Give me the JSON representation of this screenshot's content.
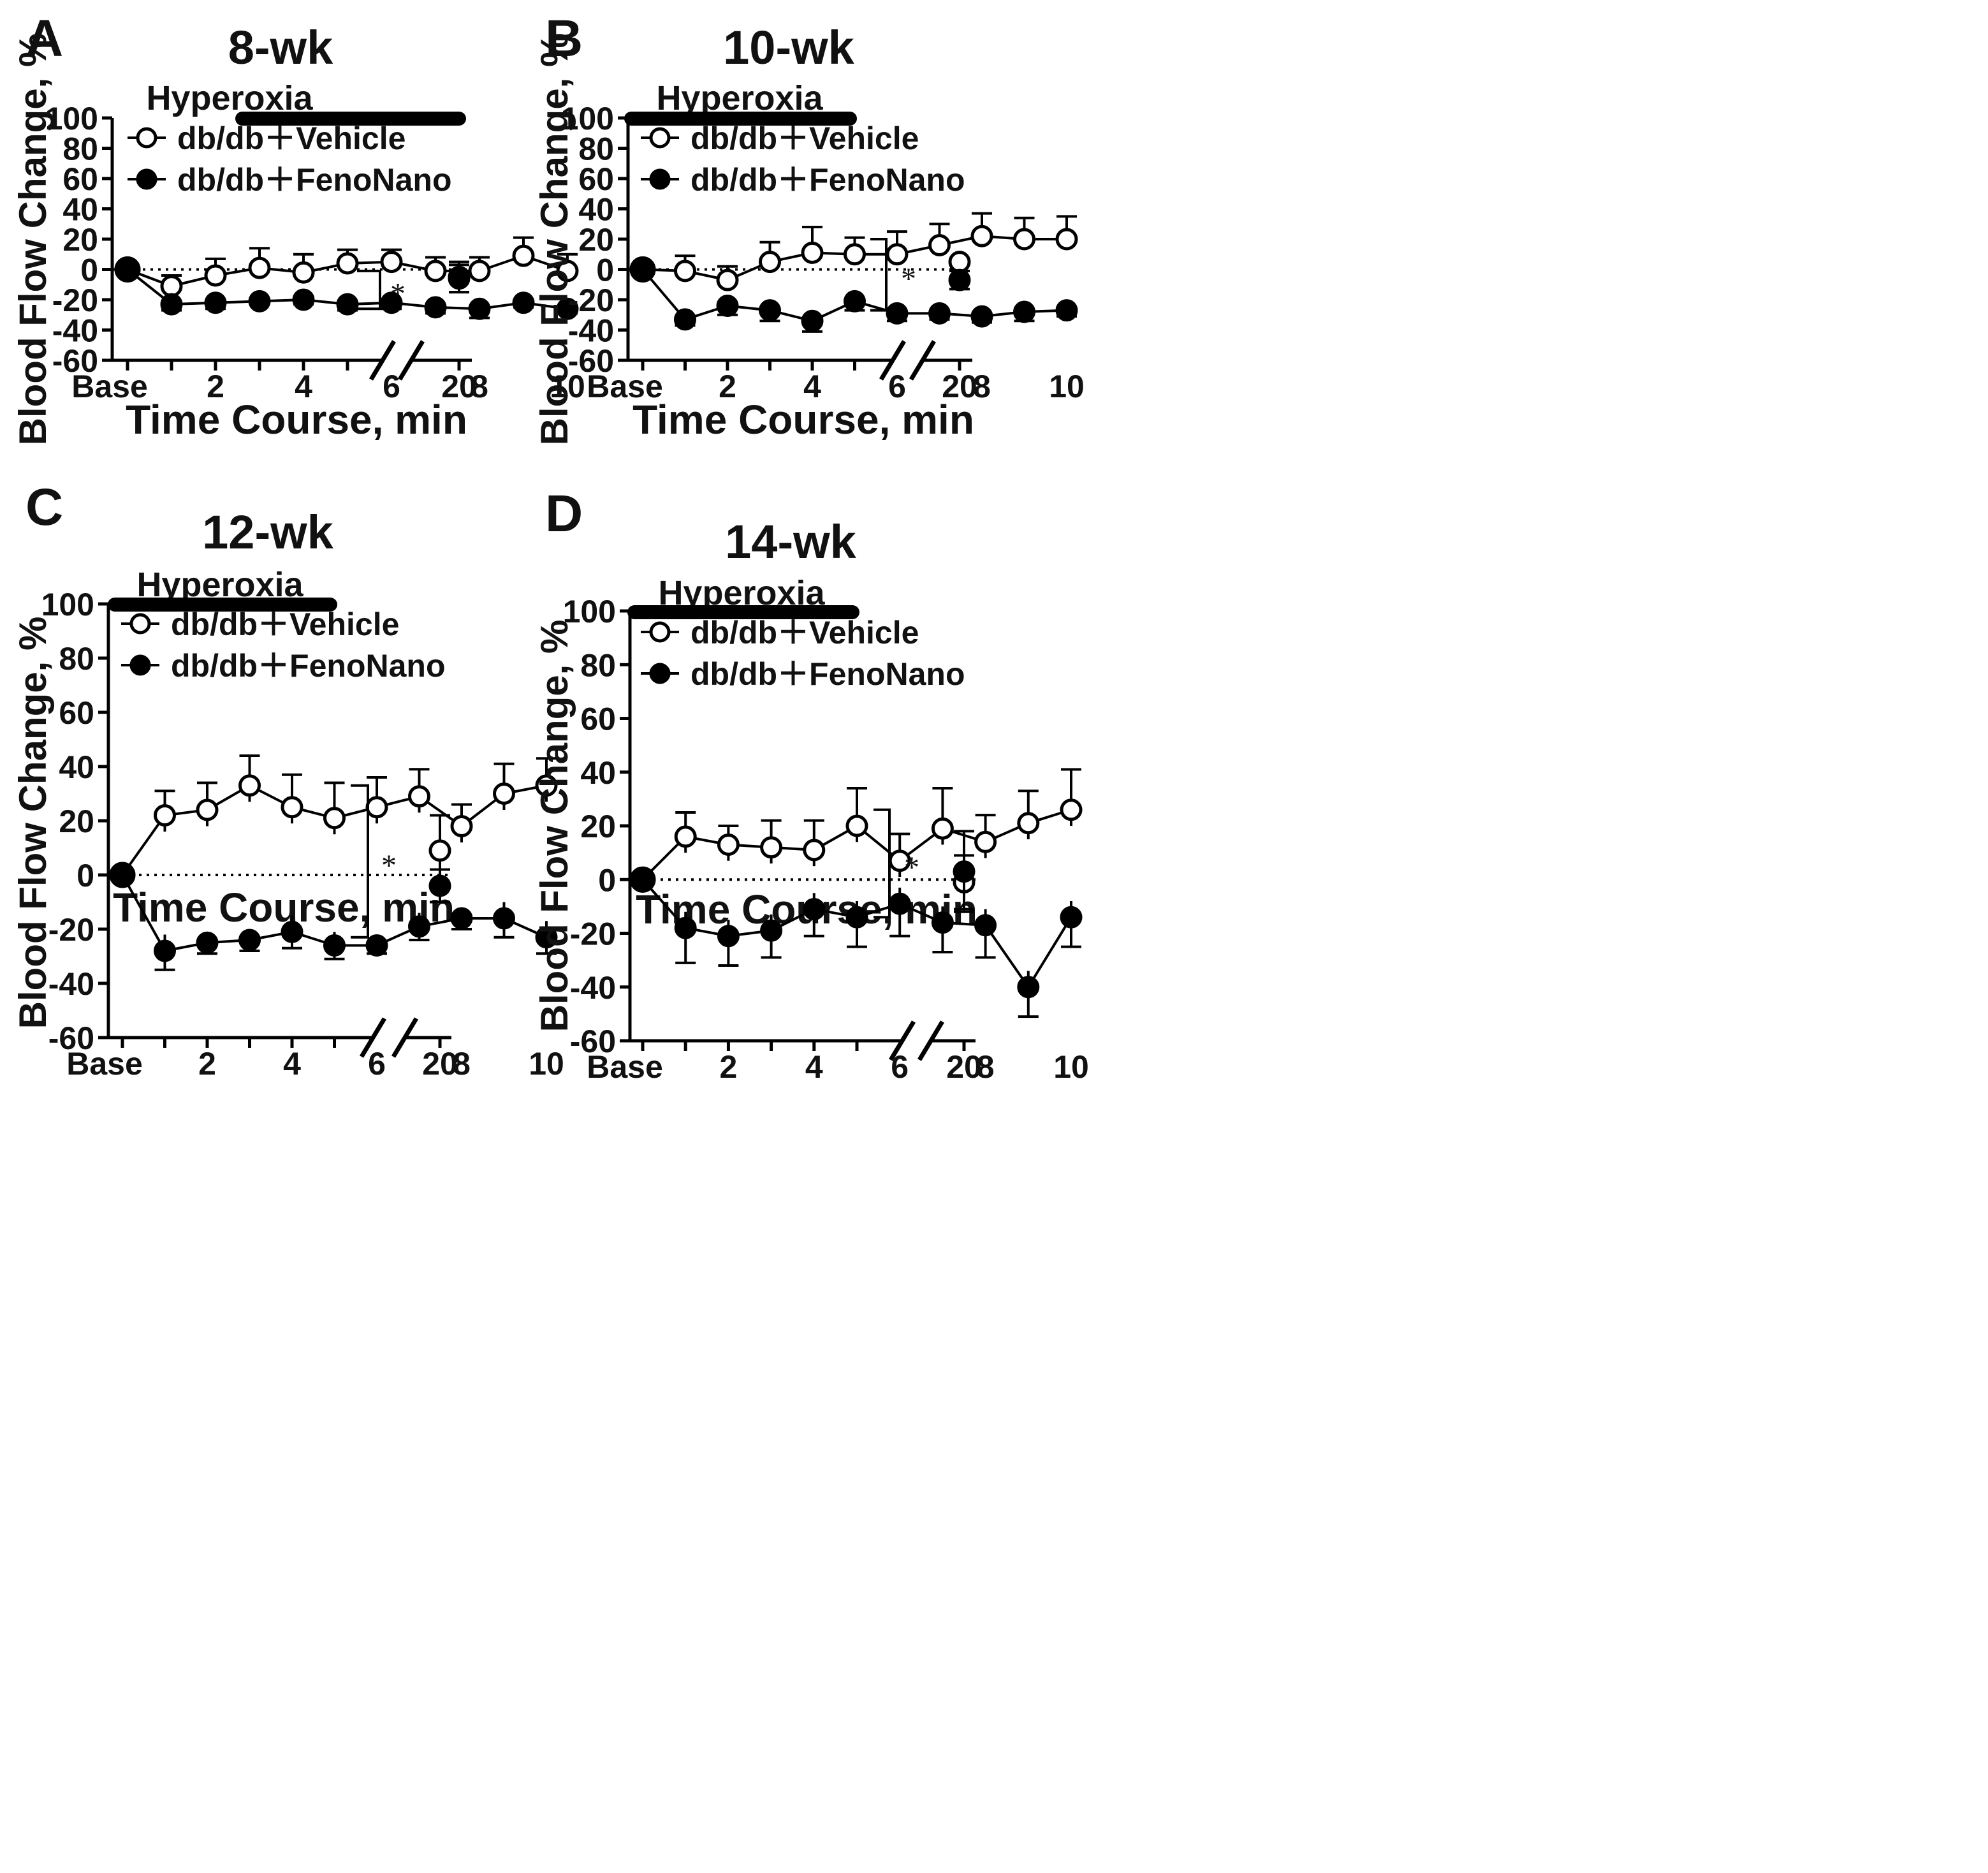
{
  "figure": {
    "shared": {
      "hyperoxia_label": "Hyperoxia",
      "legend": [
        "db/db＋Vehicle",
        "db/db＋FenoNano"
      ],
      "ylabel": "Blood Flow Change, %",
      "xlabel": "Time Course, min",
      "significance": "*"
    }
  },
  "chart_data": [
    {
      "panel": "A",
      "title": "8-wk",
      "type": "line",
      "x": [
        "Base",
        1,
        2,
        3,
        4,
        5,
        6,
        7,
        8,
        9,
        10
      ],
      "x_tick_labels": [
        "Base",
        "2",
        "4",
        "6",
        "8",
        "10",
        "20"
      ],
      "ylim": [
        -60,
        100
      ],
      "y_ticks": [
        100,
        80,
        60,
        40,
        20,
        0,
        -20,
        -40,
        -60
      ],
      "xlabel": "Time Course, min",
      "ylabel": "Blood Flow Change, %",
      "hyperoxia": "Hyperoxia",
      "series": [
        {
          "name": "db/db＋Vehicle",
          "marker": "open",
          "values": [
            0,
            -11,
            -4,
            1,
            -2,
            4,
            5,
            -1,
            -1,
            9,
            -1
          ],
          "errors": [
            0,
            7,
            11,
            13,
            12,
            9,
            8,
            9,
            9,
            12,
            11
          ],
          "x20": -5,
          "err20": 10
        },
        {
          "name": "db/db＋FenoNano",
          "marker": "filled",
          "values": [
            0,
            -23,
            -22,
            -21,
            -20,
            -23,
            -22,
            -25,
            -26,
            -22,
            -26
          ],
          "errors": [
            0,
            4,
            4,
            2,
            3,
            4,
            4,
            4,
            6,
            3,
            3
          ],
          "x20": -6,
          "err20": 9
        }
      ],
      "significance": "*"
    },
    {
      "panel": "B",
      "title": "10-wk",
      "type": "line",
      "x": [
        "Base",
        1,
        2,
        3,
        4,
        5,
        6,
        7,
        8,
        9,
        10
      ],
      "x_tick_labels": [
        "Base",
        "2",
        "4",
        "6",
        "8",
        "10",
        "20"
      ],
      "ylim": [
        -60,
        100
      ],
      "y_ticks": [
        100,
        80,
        60,
        40,
        20,
        0,
        -20,
        -40,
        -60
      ],
      "xlabel": "Time Course, min",
      "ylabel": "Blood Flow Change, %",
      "hyperoxia": "Hyperoxia",
      "series": [
        {
          "name": "db/db＋Vehicle",
          "marker": "open",
          "values": [
            0,
            -1,
            -7,
            5,
            11,
            10,
            10,
            16,
            22,
            20,
            20
          ],
          "errors": [
            0,
            10,
            9,
            13,
            17,
            11,
            15,
            14,
            15,
            14,
            15
          ],
          "x20": 5,
          "err20": 0
        },
        {
          "name": "db/db＋FenoNano",
          "marker": "filled",
          "values": [
            0,
            -33,
            -24,
            -27,
            -34,
            -21,
            -29,
            -29,
            -31,
            -28,
            -27
          ],
          "errors": [
            0,
            4,
            6,
            7,
            7,
            6,
            5,
            4,
            4,
            6,
            4
          ],
          "x20": -7,
          "err20": 6
        }
      ],
      "significance": "*"
    },
    {
      "panel": "C",
      "title": "12-wk",
      "type": "line",
      "x": [
        "Base",
        1,
        2,
        3,
        4,
        5,
        6,
        7,
        8,
        9,
        10
      ],
      "x_tick_labels": [
        "Base",
        "2",
        "4",
        "6",
        "8",
        "10",
        "20"
      ],
      "ylim": [
        -60,
        100
      ],
      "y_ticks": [
        100,
        80,
        60,
        40,
        20,
        0,
        -20,
        -40,
        -60
      ],
      "xlabel": "Time Course, min",
      "ylabel": "Blood Flow Change, %",
      "hyperoxia": "Hyperoxia",
      "series": [
        {
          "name": "db/db＋Vehicle",
          "marker": "open",
          "values": [
            0,
            22,
            24,
            33,
            25,
            21,
            25,
            29,
            18,
            30,
            33
          ],
          "errors": [
            0,
            9,
            10,
            11,
            12,
            13,
            11,
            10,
            8,
            11,
            10
          ],
          "x20": 9,
          "err20": 13
        },
        {
          "name": "db/db＋FenoNano",
          "marker": "filled",
          "values": [
            0,
            -28,
            -25,
            -24,
            -21,
            -26,
            -26,
            -19,
            -16,
            -16,
            -23
          ],
          "errors": [
            0,
            7,
            4,
            4,
            6,
            5,
            3,
            5,
            4,
            7,
            6
          ],
          "x20": -4,
          "err20": 6
        }
      ],
      "significance": "*"
    },
    {
      "panel": "D",
      "title": "14-wk",
      "type": "line",
      "x": [
        "Base",
        1,
        2,
        3,
        4,
        5,
        6,
        7,
        8,
        9,
        10
      ],
      "x_tick_labels": [
        "Base",
        "2",
        "4",
        "6",
        "8",
        "10",
        "20"
      ],
      "ylim": [
        -60,
        100
      ],
      "y_ticks": [
        100,
        80,
        60,
        40,
        20,
        0,
        -20,
        -40,
        -60
      ],
      "xlabel": "Time Course, min",
      "ylabel": "Blood Flow Change, %",
      "hyperoxia": "Hyperoxia",
      "series": [
        {
          "name": "db/db＋Vehicle",
          "marker": "open",
          "values": [
            0,
            16,
            13,
            12,
            11,
            20,
            7,
            19,
            14,
            21,
            26
          ],
          "errors": [
            0,
            9,
            7,
            10,
            11,
            14,
            10,
            15,
            10,
            12,
            15
          ],
          "x20": -1,
          "err20": 10
        },
        {
          "name": "db/db＋FenoNano",
          "marker": "filled",
          "values": [
            0,
            -18,
            -21,
            -19,
            -11,
            -14,
            -9,
            -16,
            -17,
            -40,
            -14
          ],
          "errors": [
            0,
            13,
            11,
            10,
            10,
            11,
            12,
            11,
            12,
            11,
            11
          ],
          "x20": 3,
          "err20": 15
        }
      ],
      "significance": "*"
    }
  ]
}
